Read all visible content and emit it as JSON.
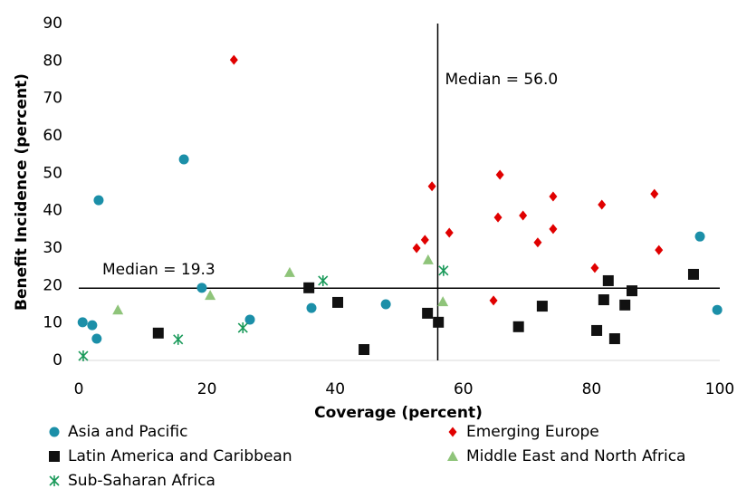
{
  "chart_data": {
    "type": "scatter",
    "x_label": "Coverage (percent)",
    "y_label": "Benefit Incidence (percent)",
    "xlim": [
      0,
      100
    ],
    "xticks": [
      0,
      20,
      40,
      60,
      80,
      100
    ],
    "ylim": [
      0,
      90
    ],
    "yticks": [
      0,
      10,
      20,
      30,
      40,
      50,
      60,
      70,
      80,
      90
    ],
    "vlines": [
      {
        "value": 56.0,
        "label": "Median = 56.0"
      }
    ],
    "hlines": [
      {
        "value": 19.3,
        "label": "Median = 19.3"
      }
    ],
    "legend": "bottom",
    "series": [
      {
        "name": "Asia and Pacific",
        "color": "#1b8fa8",
        "marker": "circle",
        "x": [
          0.6,
          2.1,
          2.8,
          3.1,
          16.4,
          19.2,
          26.7,
          36.3,
          47.9,
          96.9,
          99.6
        ],
        "values": [
          10.2,
          9.4,
          5.8,
          42.8,
          53.7,
          19.4,
          10.9,
          14.0,
          15.0,
          33.1,
          13.5
        ]
      },
      {
        "name": "Emerging Europe",
        "color": "#e00000",
        "marker": "diamond",
        "x": [
          24.2,
          52.7,
          54.0,
          55.1,
          57.8,
          65.7,
          65.4,
          64.7,
          69.3,
          71.6,
          74.0,
          74.0,
          80.5,
          81.6,
          89.8,
          90.5
        ],
        "values": [
          80.3,
          30.0,
          32.2,
          46.5,
          34.1,
          49.6,
          38.2,
          16.0,
          38.7,
          31.5,
          43.8,
          35.1,
          24.7,
          41.6,
          44.5,
          29.5
        ]
      },
      {
        "name": "Latin America and Caribbean",
        "color": "#111111",
        "marker": "square",
        "x": [
          12.4,
          35.9,
          40.4,
          44.5,
          54.4,
          56.1,
          68.6,
          72.3,
          80.8,
          81.9,
          82.6,
          83.6,
          85.2,
          86.3,
          95.9
        ],
        "values": [
          7.3,
          19.4,
          15.5,
          2.9,
          12.6,
          10.2,
          9.0,
          14.5,
          8.0,
          16.2,
          21.3,
          5.8,
          14.8,
          18.6,
          23.0
        ]
      },
      {
        "name": "Middle East and North Africa",
        "color": "#8fc47a",
        "marker": "triangle",
        "x": [
          6.1,
          20.5,
          32.9,
          54.5,
          56.8
        ],
        "values": [
          13.5,
          17.4,
          23.5,
          26.9,
          15.7
        ]
      },
      {
        "name": "Sub-Saharan Africa",
        "color": "#1a9a5a",
        "marker": "asterisk",
        "x": [
          0.7,
          15.5,
          25.6,
          38.1,
          56.9
        ],
        "values": [
          1.2,
          5.6,
          8.7,
          21.3,
          24.0
        ]
      }
    ]
  }
}
